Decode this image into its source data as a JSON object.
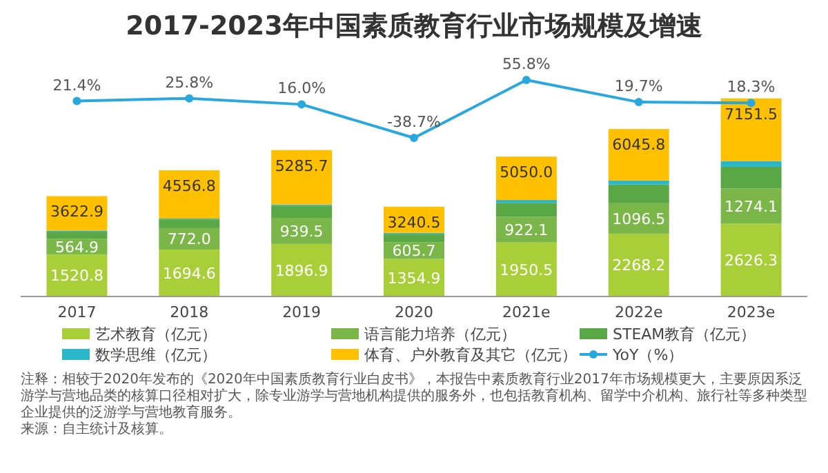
{
  "chart_data": {
    "type": "bar",
    "title": "2017-2023年中国素质教育行业市场规模及增速",
    "categories": [
      "2017",
      "2018",
      "2019",
      "2020",
      "2021e",
      "2022e",
      "2023e"
    ],
    "stacked": true,
    "legend": "bottom",
    "tick_labels": "x",
    "series": [
      {
        "name": "艺术教育（亿元）",
        "color": "#a9cf38",
        "values": [
          1520.8,
          1694.6,
          1896.9,
          1354.9,
          1950.5,
          2268.2,
          2626.3
        ],
        "value_labels": [
          "1520.8",
          "1694.6",
          "1896.9",
          "1354.9",
          "1950.5",
          "2268.2",
          "2626.3"
        ]
      },
      {
        "name": "语言能力培养（亿元）",
        "color": "#7ab648",
        "values": [
          564.9,
          772.0,
          939.5,
          605.7,
          922.1,
          1096.5,
          1274.1
        ],
        "value_labels": [
          "564.9",
          "772.0",
          "939.5",
          "605.7",
          "922.1",
          "1096.5",
          "1274.1"
        ]
      },
      {
        "name": "STEAM教育（亿元）",
        "color": "#5aa845",
        "values": [
          253,
          316,
          443,
          300,
          506,
          675,
          780
        ]
      },
      {
        "name": "数学思维（亿元）",
        "color": "#2ab7c9",
        "values": [
          40,
          30,
          40,
          40,
          105,
          148,
          211
        ]
      },
      {
        "name": "体育、户外教育及其它（亿元）",
        "color": "#ffc000",
        "values": [
          1244.2,
          1744.2,
          1966.3,
          939.9,
          1566.4,
          1858.1,
          2260.1
        ]
      },
      {
        "name": "YoY（%）",
        "type": "line",
        "axis": "y2",
        "marker": "circle",
        "color": "#29a8e0",
        "values": [
          21.4,
          25.8,
          16.0,
          -38.7,
          55.8,
          19.7,
          18.3
        ],
        "value_labels": [
          "21.4%",
          "25.8%",
          "16.0%",
          "-38.7%",
          "55.8%",
          "19.7%",
          "18.3%"
        ]
      }
    ],
    "totals": [
      "3622.9",
      "4556.8",
      "5285.7",
      "3240.5",
      "5050.0",
      "6045.8",
      "7151.5"
    ],
    "annotations": [
      "注释：相较于2020年发布的《2020年中国素质教育行业白皮书》，本报告中素质教育行业2017年市场规模更大，主要原因系泛游学与营地品类的核算口径相对扩大，除专业游学与营地机构提供的服务外，也包括教育机构、留学中介机构、旅行社等多种类型企业提供的泛游学与营地教育服务。",
      "来源：自主统计及核算。"
    ]
  }
}
